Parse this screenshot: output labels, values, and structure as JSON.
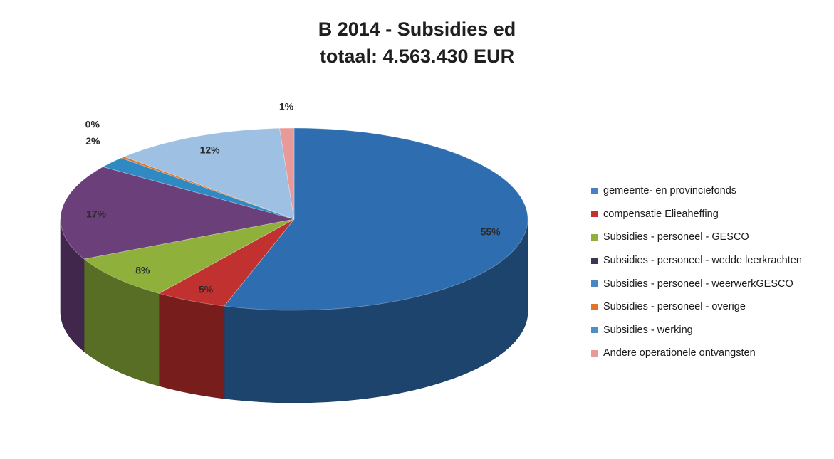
{
  "chart_data": {
    "type": "pie",
    "title": "B 2014 - Subsidies ed",
    "subtitle": "totaal:  4.563.430 EUR",
    "legend_position": "right",
    "slices": [
      {
        "name": "gemeente- en provinciefonds",
        "value": 55,
        "label": "55%",
        "color": "#2e6db0"
      },
      {
        "name": "compensatie Elieaheffing",
        "value": 5,
        "label": "5%",
        "color": "#c0312f"
      },
      {
        "name": "Subsidies - personeel - GESCO",
        "value": 8,
        "label": "8%",
        "color": "#8fb13c"
      },
      {
        "name": "Subsidies - personeel - wedde leerkrachten",
        "value": 17,
        "label": "17%",
        "color": "#6a3f7a"
      },
      {
        "name": "Subsidies - personeel - weerwerkGESCO",
        "value": 2,
        "label": "2%",
        "color": "#2f8ac4"
      },
      {
        "name": "Subsidies - personeel - overige",
        "value": 0.3,
        "label": "0%",
        "color": "#e0742a"
      },
      {
        "name": "Subsidies - werking",
        "value": 12,
        "label": "12%",
        "color": "#9ec0e3"
      },
      {
        "name": "Andere operationele ontvangsten",
        "value": 1,
        "label": "1%",
        "color": "#e79a99"
      }
    ],
    "legend_swatch_colors": [
      "#4a7fc1",
      "#c0312f",
      "#8fb13c",
      "#3d3554",
      "#4a86c6",
      "#e0742a",
      "#4a8fc9",
      "#e79a99"
    ]
  }
}
